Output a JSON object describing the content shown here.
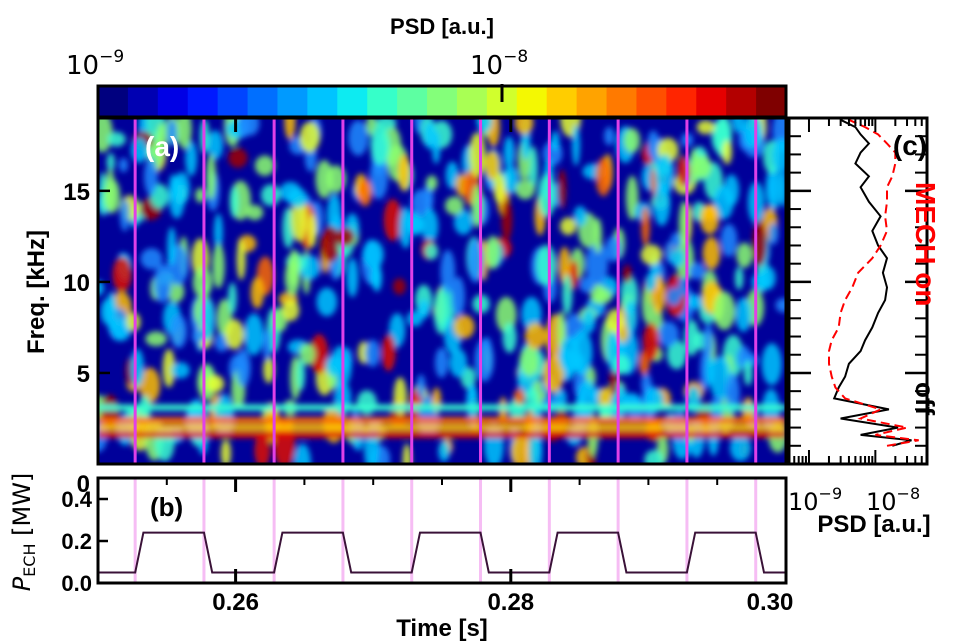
{
  "colorbar": {
    "title": "PSD [a.u.]",
    "tick_min": "10",
    "tick_min_exp": "−9",
    "tick_max": "10",
    "tick_max_exp": "−8",
    "colors": [
      "#00007f",
      "#0000b2",
      "#0000e5",
      "#0019ff",
      "#0044ff",
      "#006fff",
      "#009aff",
      "#00c4ff",
      "#0debf1",
      "#36ffc9",
      "#5dffa2",
      "#84ff7a",
      "#a9ff54",
      "#d1ff2d",
      "#f4f802",
      "#ffcd00",
      "#ffa300",
      "#ff7a00",
      "#ff4f00",
      "#ff2500",
      "#e50000",
      "#b30000",
      "#7f0000"
    ]
  },
  "chart_data": [
    {
      "panel": "(a)",
      "type": "heatmap",
      "ylabel": "Freq. [kHz]",
      "yticks": [
        5,
        10,
        15
      ],
      "ylim": [
        0,
        19
      ],
      "xlim": [
        0.25,
        0.3
      ],
      "xticks": [
        0.26,
        0.28,
        0.3
      ],
      "ech_transitions_s": [
        0.2527,
        0.2577,
        0.2628,
        0.2678,
        0.2728,
        0.2778,
        0.2828,
        0.2878,
        0.2928,
        0.2978
      ],
      "marker_color": "#e040e8"
    },
    {
      "panel": "(b)",
      "type": "line",
      "ylabel": "P",
      "ylabel_sub": "ECH",
      "ylabel_unit": " [MW]",
      "xlabel": "Time [s]",
      "xticks": [
        "0.26",
        "0.28",
        "0.30"
      ],
      "xlim": [
        0.25,
        0.3
      ],
      "ylim": [
        0.0,
        0.5
      ],
      "yticks": [
        "0.0",
        "0.2",
        "0.4"
      ],
      "series": [
        {
          "x": [
            0.25,
            0.2527,
            0.2533,
            0.2577,
            0.2583,
            0.2628,
            0.2634,
            0.2678,
            0.2684,
            0.2728,
            0.2734,
            0.2778,
            0.2784,
            0.2828,
            0.2834,
            0.2878,
            0.2884,
            0.2928,
            0.2934,
            0.2978,
            0.2984,
            0.3
          ],
          "y": [
            0.05,
            0.05,
            0.24,
            0.24,
            0.05,
            0.05,
            0.24,
            0.24,
            0.05,
            0.05,
            0.24,
            0.24,
            0.05,
            0.05,
            0.24,
            0.24,
            0.05,
            0.05,
            0.24,
            0.24,
            0.05,
            0.05
          ]
        }
      ]
    },
    {
      "panel": "(c)",
      "type": "line",
      "xlabel": "PSD [a.u.]",
      "xscale": "log",
      "xlim": [
        5e-10,
        6e-08
      ],
      "xticks_base": "10",
      "xticks_exp": [
        "−9",
        "−8"
      ],
      "ylim": [
        0,
        19
      ],
      "annotation_on": "MECH on",
      "annotation_off": "off",
      "series": [
        {
          "color": "#000000",
          "style": "solid",
          "psd": [
            1.8e-08,
            3.5e-08,
            6e-09,
            2.2e-08,
            3e-09,
            1.6e-08,
            2.4e-09,
            2.8e-09,
            3.5e-09,
            4e-09,
            6e-09,
            7e-09,
            9e-09,
            1.1e-08,
            1.4e-08,
            1.5e-08,
            1.3e-08,
            1.5e-08,
            1.1e-08,
            9e-09,
            1.2e-08,
            8e-09,
            6e-09,
            8e-09,
            5e-09,
            6e-09,
            8e-09,
            6e-09,
            5e-09,
            3e-09
          ],
          "freq": [
            1.0,
            1.3,
            1.6,
            2.0,
            2.5,
            3.0,
            3.6,
            4.2,
            4.8,
            5.5,
            6.2,
            6.8,
            7.5,
            8.3,
            9.0,
            9.7,
            10.5,
            11.3,
            12.0,
            12.8,
            13.6,
            14.4,
            15.2,
            15.8,
            16.5,
            17.1,
            17.6,
            18.1,
            18.5,
            18.9
          ]
        },
        {
          "color": "#ff0000",
          "style": "dashed",
          "psd": [
            1.5e-08,
            4.5e-08,
            1e-08,
            3e-08,
            6e-09,
            1.2e-08,
            3.5e-09,
            2.5e-09,
            2.2e-09,
            2e-09,
            2e-09,
            2.2e-09,
            2.8e-09,
            3e-09,
            3.5e-09,
            4.5e-09,
            5.5e-09,
            9e-09,
            1.2e-08,
            1.5e-08,
            1.4e-08,
            1.5e-08,
            1.5e-08,
            1.8e-08,
            2e-08,
            2e-08,
            1.5e-08,
            1.1e-08,
            7e-09,
            4e-09
          ],
          "freq": [
            1.0,
            1.3,
            1.6,
            2.0,
            2.5,
            3.0,
            3.6,
            4.2,
            4.8,
            5.5,
            6.2,
            6.8,
            7.5,
            8.3,
            9.0,
            9.7,
            10.5,
            11.3,
            12.0,
            12.8,
            13.6,
            14.4,
            15.2,
            15.8,
            16.5,
            17.1,
            17.6,
            18.1,
            18.5,
            18.9
          ]
        }
      ]
    }
  ]
}
